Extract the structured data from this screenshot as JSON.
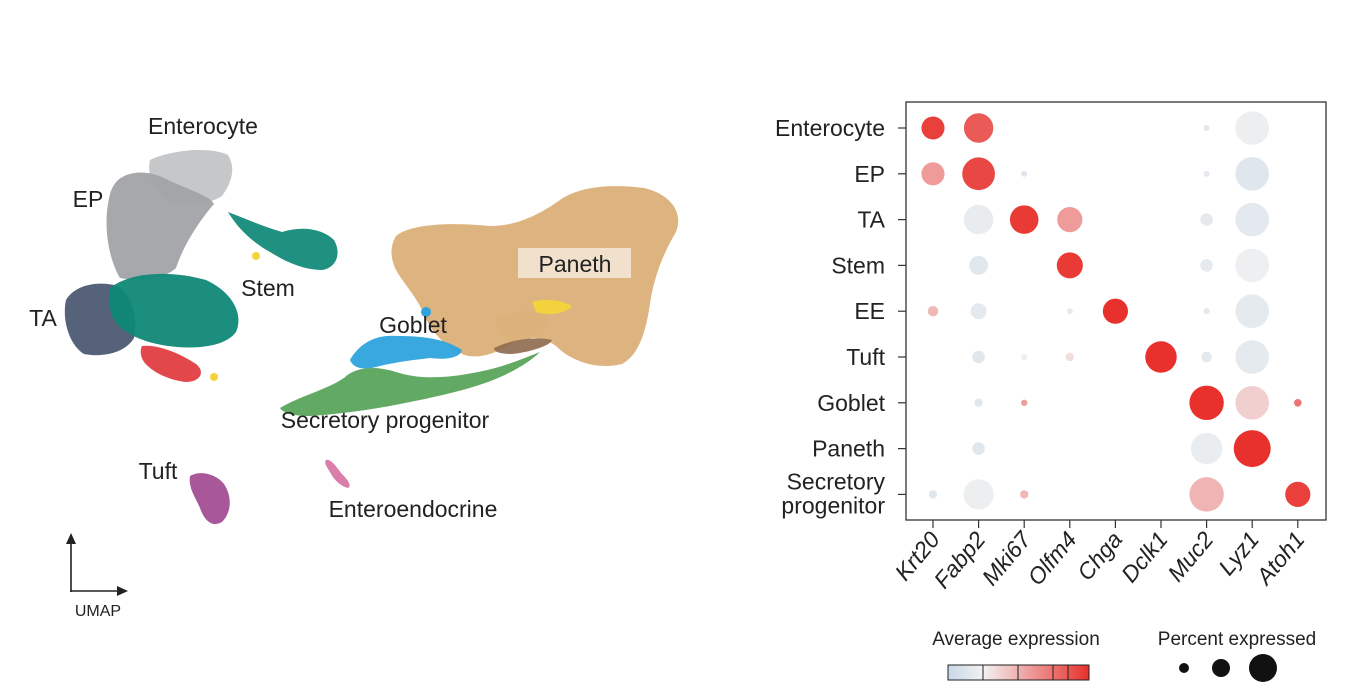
{
  "umap": {
    "clusters": [
      {
        "label": "Enterocyte",
        "color": "#bfc0c2"
      },
      {
        "label": "EP",
        "color": "#a3a4a8"
      },
      {
        "label": "TA",
        "color": "#4d5a72"
      },
      {
        "label": "Stem",
        "color": "#0f8876"
      },
      {
        "label": "Goblet",
        "color": "#2b9fd8"
      },
      {
        "label": "Paneth",
        "color": "#dcb17a"
      },
      {
        "label": "Secretory progenitor",
        "color": "#5aa55c"
      },
      {
        "label": "Tuft",
        "color": "#a34f93"
      },
      {
        "label": "Enteroendocrine",
        "color": "#d877a5"
      }
    ],
    "axis_label": "UMAP"
  },
  "chart_data": {
    "type": "scatter",
    "subtype": "dotplot",
    "rows": [
      "Enterocyte",
      "EP",
      "TA",
      "Stem",
      "EE",
      "Tuft",
      "Goblet",
      "Paneth",
      "Secretory progenitor"
    ],
    "row_display": [
      [
        "Enterocyte"
      ],
      [
        "EP"
      ],
      [
        "TA"
      ],
      [
        "Stem"
      ],
      [
        "EE"
      ],
      [
        "Tuft"
      ],
      [
        "Goblet"
      ],
      [
        "Paneth"
      ],
      [
        "Secretory",
        "progenitor"
      ]
    ],
    "columns": [
      "Krt20",
      "Fabp2",
      "Mki67",
      "Olfm4",
      "Chga",
      "Dclk1",
      "Muc2",
      "Lyz1",
      "Atoh1"
    ],
    "pct_scale_note": "percent expressed as relative fraction 0-1",
    "dots": [
      {
        "row": 0,
        "col": 0,
        "expr": 0.92,
        "pct": 0.55
      },
      {
        "row": 0,
        "col": 1,
        "expr": 0.78,
        "pct": 0.7
      },
      {
        "row": 0,
        "col": 6,
        "expr": -0.35,
        "pct": 0.12
      },
      {
        "row": 0,
        "col": 7,
        "expr": -0.15,
        "pct": 0.8
      },
      {
        "row": 1,
        "col": 0,
        "expr": 0.45,
        "pct": 0.55
      },
      {
        "row": 1,
        "col": 1,
        "expr": 0.88,
        "pct": 0.78
      },
      {
        "row": 1,
        "col": 2,
        "expr": -0.45,
        "pct": 0.1
      },
      {
        "row": 1,
        "col": 6,
        "expr": -0.35,
        "pct": 0.12
      },
      {
        "row": 1,
        "col": 7,
        "expr": -0.45,
        "pct": 0.8
      },
      {
        "row": 2,
        "col": 1,
        "expr": -0.25,
        "pct": 0.7
      },
      {
        "row": 2,
        "col": 2,
        "expr": 0.95,
        "pct": 0.68
      },
      {
        "row": 2,
        "col": 3,
        "expr": 0.45,
        "pct": 0.6
      },
      {
        "row": 2,
        "col": 6,
        "expr": -0.3,
        "pct": 0.3
      },
      {
        "row": 2,
        "col": 7,
        "expr": -0.35,
        "pct": 0.8
      },
      {
        "row": 3,
        "col": 1,
        "expr": -0.4,
        "pct": 0.45
      },
      {
        "row": 3,
        "col": 3,
        "expr": 0.95,
        "pct": 0.62
      },
      {
        "row": 3,
        "col": 6,
        "expr": -0.3,
        "pct": 0.3
      },
      {
        "row": 3,
        "col": 7,
        "expr": -0.1,
        "pct": 0.8
      },
      {
        "row": 4,
        "col": 0,
        "expr": 0.3,
        "pct": 0.25
      },
      {
        "row": 4,
        "col": 1,
        "expr": -0.35,
        "pct": 0.38
      },
      {
        "row": 4,
        "col": 3,
        "expr": -0.3,
        "pct": 0.1
      },
      {
        "row": 4,
        "col": 4,
        "expr": 1.0,
        "pct": 0.6
      },
      {
        "row": 4,
        "col": 6,
        "expr": -0.35,
        "pct": 0.15
      },
      {
        "row": 4,
        "col": 7,
        "expr": -0.3,
        "pct": 0.8
      },
      {
        "row": 5,
        "col": 1,
        "expr": -0.4,
        "pct": 0.3
      },
      {
        "row": 5,
        "col": 2,
        "expr": -0.12,
        "pct": 0.15
      },
      {
        "row": 5,
        "col": 3,
        "expr": 0.1,
        "pct": 0.2
      },
      {
        "row": 5,
        "col": 5,
        "expr": 1.0,
        "pct": 0.75
      },
      {
        "row": 5,
        "col": 6,
        "expr": -0.35,
        "pct": 0.25
      },
      {
        "row": 5,
        "col": 7,
        "expr": -0.3,
        "pct": 0.8
      },
      {
        "row": 6,
        "col": 1,
        "expr": -0.4,
        "pct": 0.2
      },
      {
        "row": 6,
        "col": 2,
        "expr": 0.45,
        "pct": 0.15
      },
      {
        "row": 6,
        "col": 6,
        "expr": 1.0,
        "pct": 0.82
      },
      {
        "row": 6,
        "col": 7,
        "expr": 0.18,
        "pct": 0.8
      },
      {
        "row": 6,
        "col": 8,
        "expr": 0.65,
        "pct": 0.18
      },
      {
        "row": 7,
        "col": 1,
        "expr": -0.4,
        "pct": 0.3
      },
      {
        "row": 7,
        "col": 6,
        "expr": -0.18,
        "pct": 0.75
      },
      {
        "row": 7,
        "col": 7,
        "expr": 1.0,
        "pct": 0.88
      },
      {
        "row": 8,
        "col": 0,
        "expr": -0.4,
        "pct": 0.2
      },
      {
        "row": 8,
        "col": 1,
        "expr": -0.15,
        "pct": 0.72
      },
      {
        "row": 8,
        "col": 2,
        "expr": 0.3,
        "pct": 0.2
      },
      {
        "row": 8,
        "col": 6,
        "expr": 0.32,
        "pct": 0.82
      },
      {
        "row": 8,
        "col": 8,
        "expr": 0.92,
        "pct": 0.6
      }
    ],
    "legend": {
      "color_title": "Average expression",
      "size_title": "Percent expressed",
      "colormap": [
        "#c8d8e6",
        "#f2f2f2",
        "#e8302c"
      ]
    }
  }
}
